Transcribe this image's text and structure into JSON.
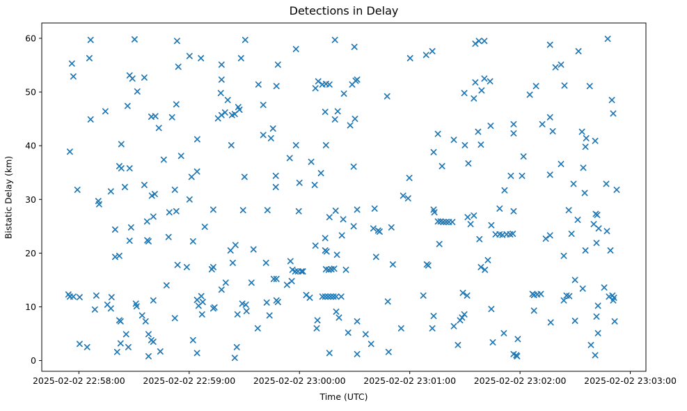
{
  "chart_data": {
    "type": "scatter",
    "title": "Detections in Delay",
    "xlabel": "Time (UTC)",
    "ylabel": "Bistatic Delay (km)",
    "legend": "none",
    "grid": false,
    "marker": "x",
    "marker_color": "#1f77b4",
    "x_unit": "seconds after 2025-02-02 22:58:00 UTC",
    "x_axis_range_s": [
      -20.2,
      308.5
    ],
    "y_axis_range": [
      -2.0,
      62.85
    ],
    "x_ticks": [
      {
        "t": 0,
        "label": "2025-02-02 22:58:00"
      },
      {
        "t": 60,
        "label": "2025-02-02 22:59:00"
      },
      {
        "t": 120,
        "label": "2025-02-02 23:00:00"
      },
      {
        "t": 180,
        "label": "2025-02-02 23:01:00"
      },
      {
        "t": 240,
        "label": "2025-02-02 23:02:00"
      },
      {
        "t": 300,
        "label": "2025-02-02 23:03:00"
      }
    ],
    "y_ticks": [
      {
        "v": 0,
        "label": "0"
      },
      {
        "v": 10,
        "label": "10"
      },
      {
        "v": 20,
        "label": "20"
      },
      {
        "v": 30,
        "label": "30"
      },
      {
        "v": 40,
        "label": "40"
      },
      {
        "v": 50,
        "label": "50"
      },
      {
        "v": 60,
        "label": "60"
      }
    ],
    "points": [
      [
        6.4,
        59.7
      ],
      [
        30.3,
        59.8
      ],
      [
        53.4,
        59.5
      ],
      [
        5.7,
        56.3
      ],
      [
        60.2,
        56.7
      ],
      [
        66.4,
        56.3
      ],
      [
        -3.8,
        55.3
      ],
      [
        54.1,
        54.7
      ],
      [
        -3.0,
        52.9
      ],
      [
        27.6,
        53.1
      ],
      [
        29.1,
        52.5
      ],
      [
        35.6,
        52.7
      ],
      [
        31.8,
        50.1
      ],
      [
        26.5,
        47.4
      ],
      [
        53.0,
        47.7
      ],
      [
        14.4,
        46.4
      ],
      [
        39.4,
        45.4
      ],
      [
        41.6,
        45.5
      ],
      [
        50.7,
        45.3
      ],
      [
        6.4,
        44.9
      ],
      [
        43.5,
        43.3
      ],
      [
        64.4,
        41.2
      ],
      [
        23.1,
        40.3
      ],
      [
        -4.9,
        38.9
      ],
      [
        55.6,
        38.1
      ],
      [
        46.2,
        37.4
      ],
      [
        22.0,
        36.2
      ],
      [
        23.1,
        35.8
      ],
      [
        27.6,
        35.8
      ],
      [
        64.3,
        35.2
      ],
      [
        61.3,
        34.2
      ],
      [
        -0.8,
        31.8
      ],
      [
        17.4,
        31.5
      ],
      [
        25.0,
        32.3
      ],
      [
        35.6,
        32.7
      ],
      [
        39.7,
        30.7
      ],
      [
        41.3,
        31.0
      ],
      [
        52.2,
        31.8
      ],
      [
        10.6,
        29.7
      ],
      [
        60.2,
        30.0
      ],
      [
        11.0,
        29.1
      ],
      [
        49.2,
        27.6
      ],
      [
        53.0,
        27.8
      ],
      [
        40.5,
        26.8
      ],
      [
        37.1,
        25.9
      ],
      [
        19.7,
        24.4
      ],
      [
        28.4,
        24.8
      ],
      [
        27.6,
        22.3
      ],
      [
        37.2,
        22.4
      ],
      [
        37.9,
        22.2
      ],
      [
        48.8,
        23.0
      ],
      [
        62.1,
        22.2
      ],
      [
        19.7,
        19.3
      ],
      [
        22.0,
        19.5
      ],
      [
        53.7,
        17.8
      ],
      [
        58.7,
        17.4
      ],
      [
        47.7,
        14.0
      ],
      [
        -5.7,
        12.3
      ],
      [
        -4.9,
        11.9
      ],
      [
        -3.0,
        11.9
      ],
      [
        0.4,
        11.8
      ],
      [
        9.5,
        12.1
      ],
      [
        17.8,
        11.8
      ],
      [
        8.7,
        9.5
      ],
      [
        15.5,
        10.4
      ],
      [
        17.4,
        9.7
      ],
      [
        31.0,
        10.6
      ],
      [
        31.4,
        10.1
      ],
      [
        40.5,
        11.2
      ],
      [
        64.3,
        11.3
      ],
      [
        66.6,
        12.0
      ],
      [
        67.4,
        10.9
      ],
      [
        65.1,
        10.2
      ],
      [
        67.0,
        8.6
      ],
      [
        34.4,
        8.4
      ],
      [
        36.3,
        7.3
      ],
      [
        22.0,
        7.5
      ],
      [
        22.7,
        7.3
      ],
      [
        52.2,
        7.9
      ],
      [
        25.7,
        4.9
      ],
      [
        37.9,
        4.9
      ],
      [
        39.4,
        3.8
      ],
      [
        40.5,
        3.5
      ],
      [
        0.4,
        3.1
      ],
      [
        4.5,
        2.5
      ],
      [
        22.7,
        3.2
      ],
      [
        26.9,
        2.5
      ],
      [
        20.8,
        1.6
      ],
      [
        62.1,
        3.8
      ],
      [
        37.9,
        0.8
      ],
      [
        44.3,
        1.7
      ],
      [
        64.3,
        1.4
      ],
      [
        90.5,
        59.7
      ],
      [
        139.3,
        59.7
      ],
      [
        149.9,
        58.4
      ],
      [
        118.1,
        58.0
      ],
      [
        88.2,
        56.3
      ],
      [
        77.6,
        55.1
      ],
      [
        108.3,
        55.1
      ],
      [
        77.6,
        52.3
      ],
      [
        97.7,
        51.4
      ],
      [
        107.5,
        51.1
      ],
      [
        130.2,
        52.0
      ],
      [
        132.5,
        51.4
      ],
      [
        134.4,
        51.5
      ],
      [
        136.3,
        51.4
      ],
      [
        128.7,
        50.7
      ],
      [
        148.7,
        51.4
      ],
      [
        150.6,
        52.1
      ],
      [
        144.2,
        49.7
      ],
      [
        77.2,
        49.8
      ],
      [
        81.0,
        48.5
      ],
      [
        100.3,
        47.6
      ],
      [
        86.7,
        47.2
      ],
      [
        87.4,
        46.7
      ],
      [
        79.5,
        46.2
      ],
      [
        77.6,
        45.7
      ],
      [
        84.8,
        45.9
      ],
      [
        83.3,
        45.7
      ],
      [
        75.7,
        45.1
      ],
      [
        134.0,
        46.3
      ],
      [
        140.8,
        46.4
      ],
      [
        139.3,
        44.9
      ],
      [
        150.2,
        45.0
      ],
      [
        147.6,
        43.8
      ],
      [
        105.6,
        43.2
      ],
      [
        100.3,
        42.0
      ],
      [
        104.5,
        41.4
      ],
      [
        82.9,
        40.1
      ],
      [
        118.1,
        40.1
      ],
      [
        134.4,
        40.1
      ],
      [
        114.7,
        37.7
      ],
      [
        126.4,
        37.0
      ],
      [
        149.5,
        36.1
      ],
      [
        131.7,
        34.9
      ],
      [
        90.1,
        34.2
      ],
      [
        107.1,
        34.4
      ],
      [
        107.1,
        32.3
      ],
      [
        120.0,
        33.1
      ],
      [
        128.3,
        32.7
      ],
      [
        73.1,
        28.1
      ],
      [
        89.3,
        28.0
      ],
      [
        102.6,
        28.0
      ],
      [
        119.6,
        27.8
      ],
      [
        136.3,
        26.7
      ],
      [
        139.7,
        27.9
      ],
      [
        143.8,
        26.3
      ],
      [
        151.4,
        28.1
      ],
      [
        68.5,
        24.9
      ],
      [
        149.5,
        25.0
      ],
      [
        143.1,
        23.3
      ],
      [
        134.0,
        22.8
      ],
      [
        128.7,
        21.4
      ],
      [
        85.2,
        21.5
      ],
      [
        82.5,
        20.5
      ],
      [
        95.0,
        20.7
      ],
      [
        134.0,
        20.5
      ],
      [
        134.8,
        20.3
      ],
      [
        140.4,
        19.7
      ],
      [
        83.7,
        18.2
      ],
      [
        115.1,
        18.5
      ],
      [
        101.8,
        18.2
      ],
      [
        73.1,
        17.4
      ],
      [
        72.3,
        17.0
      ],
      [
        116.2,
        16.9
      ],
      [
        117.7,
        16.6
      ],
      [
        119.2,
        16.6
      ],
      [
        121.1,
        16.6
      ],
      [
        121.9,
        16.6
      ],
      [
        134.4,
        17.0
      ],
      [
        135.9,
        16.9
      ],
      [
        137.4,
        17.0
      ],
      [
        138.9,
        17.1
      ],
      [
        145.3,
        16.9
      ],
      [
        79.9,
        14.5
      ],
      [
        93.9,
        14.5
      ],
      [
        106.0,
        15.2
      ],
      [
        107.5,
        15.2
      ],
      [
        113.2,
        14.1
      ],
      [
        115.8,
        14.8
      ],
      [
        77.6,
        13.2
      ],
      [
        123.7,
        12.2
      ],
      [
        125.6,
        11.7
      ],
      [
        132.5,
        11.9
      ],
      [
        134.0,
        11.9
      ],
      [
        135.5,
        11.9
      ],
      [
        137.0,
        11.9
      ],
      [
        138.5,
        11.9
      ],
      [
        140.0,
        11.9
      ],
      [
        142.7,
        11.9
      ],
      [
        73.8,
        9.9
      ],
      [
        73.1,
        9.7
      ],
      [
        88.9,
        10.6
      ],
      [
        90.8,
        10.4
      ],
      [
        91.2,
        9.2
      ],
      [
        86.3,
        8.6
      ],
      [
        102.2,
        10.8
      ],
      [
        103.7,
        8.4
      ],
      [
        107.5,
        11.2
      ],
      [
        108.3,
        10.9
      ],
      [
        129.8,
        7.5
      ],
      [
        129.4,
        6.0
      ],
      [
        140.0,
        9.1
      ],
      [
        141.5,
        8.0
      ],
      [
        151.4,
        7.3
      ],
      [
        146.5,
        5.2
      ],
      [
        97.3,
        6.0
      ],
      [
        85.9,
        2.5
      ],
      [
        84.8,
        0.5
      ],
      [
        136.3,
        1.4
      ],
      [
        151.4,
        1.2
      ],
      [
        215.7,
        59.0
      ],
      [
        217.6,
        59.5
      ],
      [
        220.6,
        59.5
      ],
      [
        180.2,
        56.3
      ],
      [
        188.9,
        56.9
      ],
      [
        192.3,
        57.6
      ],
      [
        151.4,
        52.3
      ],
      [
        167.7,
        49.2
      ],
      [
        220.6,
        52.5
      ],
      [
        223.7,
        52.0
      ],
      [
        215.7,
        51.8
      ],
      [
        209.7,
        49.8
      ],
      [
        219.1,
        50.3
      ],
      [
        214.9,
        48.8
      ],
      [
        224.0,
        43.7
      ],
      [
        236.5,
        44.0
      ],
      [
        195.3,
        42.2
      ],
      [
        217.2,
        42.6
      ],
      [
        236.5,
        42.3
      ],
      [
        204.0,
        41.1
      ],
      [
        210.0,
        40.1
      ],
      [
        218.7,
        40.2
      ],
      [
        193.0,
        38.8
      ],
      [
        197.6,
        36.2
      ],
      [
        211.9,
        36.7
      ],
      [
        179.8,
        34.0
      ],
      [
        235.0,
        34.4
      ],
      [
        231.6,
        31.7
      ],
      [
        176.4,
        30.7
      ],
      [
        179.1,
        30.2
      ],
      [
        160.9,
        28.3
      ],
      [
        193.0,
        28.1
      ],
      [
        193.4,
        27.6
      ],
      [
        214.9,
        27.0
      ],
      [
        228.9,
        28.3
      ],
      [
        236.5,
        27.8
      ],
      [
        195.3,
        25.9
      ],
      [
        196.8,
        25.9
      ],
      [
        198.3,
        25.8
      ],
      [
        199.8,
        25.8
      ],
      [
        201.3,
        25.8
      ],
      [
        203.2,
        25.8
      ],
      [
        211.5,
        26.7
      ],
      [
        213.1,
        25.4
      ],
      [
        160.2,
        24.6
      ],
      [
        162.8,
        24.2
      ],
      [
        163.6,
        24.0
      ],
      [
        170.0,
        24.8
      ],
      [
        224.4,
        25.2
      ],
      [
        226.7,
        23.5
      ],
      [
        228.9,
        23.5
      ],
      [
        230.4,
        23.4
      ],
      [
        232.7,
        23.5
      ],
      [
        234.6,
        23.5
      ],
      [
        236.1,
        23.6
      ],
      [
        217.9,
        22.6
      ],
      [
        196.1,
        21.7
      ],
      [
        161.7,
        19.3
      ],
      [
        170.8,
        17.9
      ],
      [
        189.3,
        17.9
      ],
      [
        190.1,
        17.7
      ],
      [
        222.5,
        18.7
      ],
      [
        218.7,
        17.4
      ],
      [
        220.9,
        16.9
      ],
      [
        208.9,
        12.6
      ],
      [
        211.2,
        12.1
      ],
      [
        187.4,
        12.1
      ],
      [
        168.1,
        11.0
      ],
      [
        224.4,
        9.6
      ],
      [
        193.0,
        8.3
      ],
      [
        209.7,
        8.6
      ],
      [
        208.5,
        8.0
      ],
      [
        207.4,
        7.5
      ],
      [
        204.0,
        6.4
      ],
      [
        175.3,
        6.0
      ],
      [
        192.3,
        6.0
      ],
      [
        156.0,
        4.9
      ],
      [
        231.2,
        5.1
      ],
      [
        159.0,
        3.1
      ],
      [
        206.2,
        2.9
      ],
      [
        225.2,
        3.4
      ],
      [
        168.5,
        1.6
      ],
      [
        236.5,
        1.2
      ],
      [
        287.7,
        59.9
      ],
      [
        256.3,
        58.8
      ],
      [
        271.8,
        57.6
      ],
      [
        259.3,
        54.6
      ],
      [
        262.3,
        55.1
      ],
      [
        248.7,
        51.1
      ],
      [
        245.3,
        49.5
      ],
      [
        264.2,
        51.2
      ],
      [
        277.9,
        51.1
      ],
      [
        290.0,
        48.5
      ],
      [
        290.7,
        46.0
      ],
      [
        256.3,
        45.3
      ],
      [
        252.1,
        44.0
      ],
      [
        257.8,
        42.7
      ],
      [
        273.7,
        42.6
      ],
      [
        276.0,
        41.4
      ],
      [
        280.9,
        40.9
      ],
      [
        275.6,
        39.8
      ],
      [
        241.9,
        38.0
      ],
      [
        262.3,
        36.6
      ],
      [
        274.4,
        35.9
      ],
      [
        256.3,
        34.6
      ],
      [
        241.1,
        34.4
      ],
      [
        269.1,
        32.9
      ],
      [
        286.9,
        32.9
      ],
      [
        292.6,
        31.8
      ],
      [
        275.2,
        31.2
      ],
      [
        266.5,
        28.0
      ],
      [
        281.2,
        27.3
      ],
      [
        282.0,
        27.1
      ],
      [
        271.4,
        26.2
      ],
      [
        280.1,
        25.4
      ],
      [
        282.8,
        24.6
      ],
      [
        287.3,
        24.1
      ],
      [
        254.0,
        22.7
      ],
      [
        256.3,
        23.3
      ],
      [
        268.0,
        23.6
      ],
      [
        281.6,
        21.9
      ],
      [
        275.6,
        20.5
      ],
      [
        289.2,
        20.5
      ],
      [
        263.8,
        19.5
      ],
      [
        269.9,
        15.0
      ],
      [
        274.1,
        13.4
      ],
      [
        285.8,
        13.6
      ],
      [
        246.8,
        12.4
      ],
      [
        247.6,
        12.2
      ],
      [
        249.4,
        12.3
      ],
      [
        251.3,
        12.4
      ],
      [
        263.8,
        11.2
      ],
      [
        265.3,
        12.1
      ],
      [
        266.8,
        12.0
      ],
      [
        288.4,
        11.9
      ],
      [
        290.3,
        12.1
      ],
      [
        291.1,
        11.7
      ],
      [
        290.7,
        11.2
      ],
      [
        247.6,
        9.3
      ],
      [
        282.4,
        10.2
      ],
      [
        281.6,
        8.2
      ],
      [
        256.7,
        7.1
      ],
      [
        269.9,
        7.4
      ],
      [
        291.5,
        7.3
      ],
      [
        238.8,
        4.0
      ],
      [
        282.4,
        5.1
      ],
      [
        278.6,
        2.9
      ],
      [
        238.0,
        1.0
      ],
      [
        238.4,
        0.8
      ],
      [
        280.9,
        1.0
      ]
    ]
  }
}
